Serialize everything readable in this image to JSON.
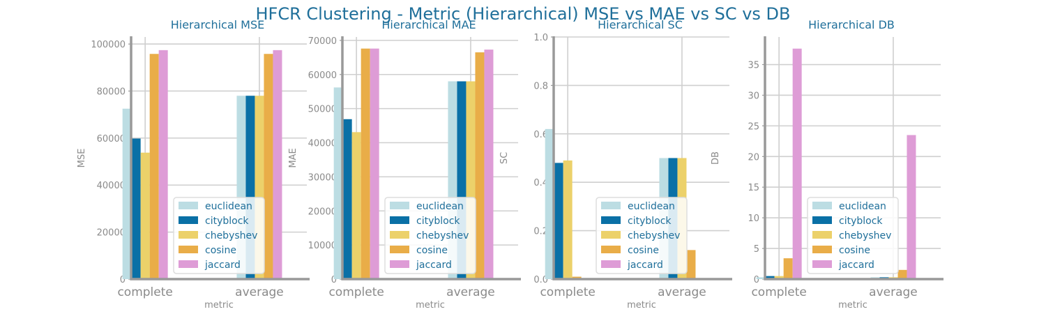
{
  "suptitle": "HFCR Clustering - Metric (Hierarchical) MSE vs MAE vs SC vs DB",
  "colors": {
    "title": "#1f6f9a",
    "axis": "#999999",
    "grid": "#cfcfcf",
    "tick": "#8a8a8a"
  },
  "chart_data": [
    {
      "type": "bar",
      "title": "Hierarchical MSE",
      "xlabel": "metric",
      "ylabel": "MSE",
      "categories": [
        "complete",
        "average"
      ],
      "ylim": [
        0,
        103000
      ],
      "yticks": [
        0,
        20000,
        40000,
        60000,
        80000,
        100000
      ],
      "series": [
        {
          "name": "euclidean",
          "color": "#bcdde3",
          "values": [
            72500,
            78000
          ]
        },
        {
          "name": "cityblock",
          "color": "#0a70a6",
          "values": [
            59800,
            78000
          ]
        },
        {
          "name": "chebyshev",
          "color": "#ecd16a",
          "values": [
            53800,
            78000
          ]
        },
        {
          "name": "cosine",
          "color": "#e9ad48",
          "values": [
            95800,
            95800
          ]
        },
        {
          "name": "jaccard",
          "color": "#de9cd6",
          "values": [
            97400,
            97400
          ]
        }
      ],
      "legend": "lower-right"
    },
    {
      "type": "bar",
      "title": "Hierarchical MAE",
      "xlabel": "metric",
      "ylabel": "MAE",
      "categories": [
        "complete",
        "average"
      ],
      "ylim": [
        0,
        71000
      ],
      "yticks": [
        0,
        10000,
        20000,
        30000,
        40000,
        50000,
        60000,
        70000
      ],
      "series": [
        {
          "name": "euclidean",
          "color": "#bcdde3",
          "values": [
            56200,
            58000
          ]
        },
        {
          "name": "cityblock",
          "color": "#0a70a6",
          "values": [
            46900,
            58000
          ]
        },
        {
          "name": "chebyshev",
          "color": "#ecd16a",
          "values": [
            43100,
            58000
          ]
        },
        {
          "name": "cosine",
          "color": "#e9ad48",
          "values": [
            67600,
            66500
          ]
        },
        {
          "name": "jaccard",
          "color": "#de9cd6",
          "values": [
            67600,
            67300
          ]
        }
      ],
      "legend": "lower-right"
    },
    {
      "type": "bar",
      "title": "Hierarchical SC",
      "xlabel": "metric",
      "ylabel": "SC",
      "categories": [
        "complete",
        "average"
      ],
      "ylim": [
        0,
        1.0
      ],
      "yticks": [
        0.0,
        0.2,
        0.4,
        0.6,
        0.8,
        1.0
      ],
      "series": [
        {
          "name": "euclidean",
          "color": "#bcdde3",
          "values": [
            0.62,
            0.5
          ]
        },
        {
          "name": "cityblock",
          "color": "#0a70a6",
          "values": [
            0.48,
            0.5
          ]
        },
        {
          "name": "chebyshev",
          "color": "#ecd16a",
          "values": [
            0.49,
            0.5
          ]
        },
        {
          "name": "cosine",
          "color": "#e9ad48",
          "values": [
            0.01,
            0.12
          ]
        },
        {
          "name": "jaccard",
          "color": "#de9cd6",
          "values": [
            0.0,
            0.0
          ]
        }
      ],
      "legend": "lower-right"
    },
    {
      "type": "bar",
      "title": "Hierarchical DB",
      "xlabel": "metric",
      "ylabel": "DB",
      "categories": [
        "complete",
        "average"
      ],
      "ylim": [
        0,
        39.5
      ],
      "yticks": [
        0,
        5,
        10,
        15,
        20,
        25,
        30,
        35
      ],
      "series": [
        {
          "name": "euclidean",
          "color": "#bcdde3",
          "values": [
            0.3,
            0.3
          ]
        },
        {
          "name": "cityblock",
          "color": "#0a70a6",
          "values": [
            0.5,
            0.3
          ]
        },
        {
          "name": "chebyshev",
          "color": "#ecd16a",
          "values": [
            0.5,
            0.3
          ]
        },
        {
          "name": "cosine",
          "color": "#e9ad48",
          "values": [
            3.4,
            1.5
          ]
        },
        {
          "name": "jaccard",
          "color": "#de9cd6",
          "values": [
            37.6,
            23.5
          ]
        }
      ],
      "legend": "lower-right"
    }
  ]
}
